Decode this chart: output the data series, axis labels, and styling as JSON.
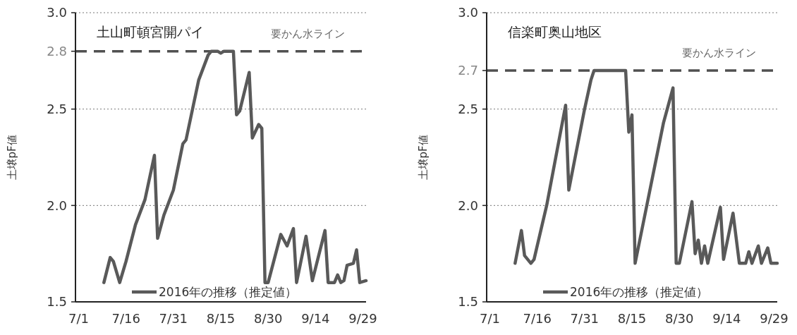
{
  "chart_data": [
    {
      "type": "line",
      "title": "土山町頓宮開パイ",
      "ylabel": "土壌pF値",
      "xlim": [
        "--06-30",
        "--09-30"
      ],
      "xticks": [
        {
          "value": "--07-01",
          "label": "7/1"
        },
        {
          "value": "--07-16",
          "label": "7/16"
        },
        {
          "value": "--07-31",
          "label": "7/31"
        },
        {
          "value": "--08-15",
          "label": "8/15"
        },
        {
          "value": "--08-30",
          "label": "8/30"
        },
        {
          "value": "--09-14",
          "label": "9/14"
        },
        {
          "value": "--09-29",
          "label": "9/29"
        }
      ],
      "ylim": [
        1.5,
        3.0
      ],
      "yticks": [
        {
          "value": 1.5,
          "label": "1.5"
        },
        {
          "value": 2.0,
          "label": "2.0"
        },
        {
          "value": 2.5,
          "label": "2.5"
        },
        {
          "value": 2.8,
          "label": "2.8"
        },
        {
          "value": 3.0,
          "label": "3.0"
        }
      ],
      "grid": "y",
      "legend": "bottom",
      "line_style": "solid",
      "ref_lines": [
        {
          "axis": "y",
          "value": 2.8,
          "label": "要かん水ライン",
          "color": "#505050",
          "line_style": "dashed"
        }
      ],
      "series": [
        {
          "name": "2016年の推移（推定値）",
          "color": "#595959",
          "x": [
            "--07-09",
            "--07-11",
            "--07-12",
            "--07-14",
            "--07-16",
            "--07-19",
            "--07-22",
            "--07-25",
            "--07-26",
            "--07-28",
            "--07-31",
            "--08-03",
            "--08-04",
            "--08-08",
            "--08-11",
            "--08-12",
            "--08-14",
            "--08-15",
            "--08-16",
            "--08-19",
            "--08-20",
            "--08-21",
            "--08-24",
            "--08-25",
            "--08-27",
            "--08-28",
            "--08-29",
            "--08-30",
            "--09-03",
            "--09-04",
            "--09-05",
            "--09-07",
            "--09-08",
            "--09-11",
            "--09-13",
            "--09-17",
            "--09-18",
            "--09-20",
            "--09-21",
            "--09-22",
            "--09-23",
            "--09-24",
            "--09-26",
            "--09-27",
            "--09-28",
            "--09-30"
          ],
          "values": [
            1.6,
            1.73,
            1.71,
            1.6,
            1.71,
            1.9,
            2.03,
            2.26,
            1.83,
            1.95,
            2.08,
            2.32,
            2.34,
            2.65,
            2.78,
            2.8,
            2.8,
            2.79,
            2.8,
            2.8,
            2.47,
            2.49,
            2.69,
            2.35,
            2.42,
            2.4,
            1.6,
            1.6,
            1.85,
            1.82,
            1.79,
            1.88,
            1.6,
            1.84,
            1.61,
            1.87,
            1.6,
            1.6,
            1.64,
            1.6,
            1.61,
            1.69,
            1.7,
            1.77,
            1.6,
            1.61
          ]
        }
      ]
    },
    {
      "type": "line",
      "title": "信楽町奥山地区",
      "ylabel": "土壌pF値",
      "xlim": [
        "--06-30",
        "--09-30"
      ],
      "xticks": [
        {
          "value": "--07-01",
          "label": "7/1"
        },
        {
          "value": "--07-16",
          "label": "7/16"
        },
        {
          "value": "--07-31",
          "label": "7/31"
        },
        {
          "value": "--08-15",
          "label": "8/15"
        },
        {
          "value": "--08-30",
          "label": "8/30"
        },
        {
          "value": "--09-14",
          "label": "9/14"
        },
        {
          "value": "--09-29",
          "label": "9/29"
        }
      ],
      "ylim": [
        1.5,
        3.0
      ],
      "yticks": [
        {
          "value": 1.5,
          "label": "1.5"
        },
        {
          "value": 2.0,
          "label": "2.0"
        },
        {
          "value": 2.5,
          "label": "2.5"
        },
        {
          "value": 2.7,
          "label": "2.7"
        },
        {
          "value": 3.0,
          "label": "3.0"
        }
      ],
      "grid": "y",
      "legend": "bottom",
      "line_style": "solid",
      "ref_lines": [
        {
          "axis": "y",
          "value": 2.7,
          "label": "要かん水ライン",
          "color": "#505050",
          "line_style": "dashed"
        }
      ],
      "series": [
        {
          "name": "2016年の推移（推定値）",
          "color": "#595959",
          "x": [
            "--07-09",
            "--07-11",
            "--07-12",
            "--07-14",
            "--07-15",
            "--07-19",
            "--07-25",
            "--07-26",
            "--07-31",
            "--08-02",
            "--08-03",
            "--08-06",
            "--08-10",
            "--08-13",
            "--08-14",
            "--08-15",
            "--08-16",
            "--08-25",
            "--08-28",
            "--08-29",
            "--08-30",
            "--09-03",
            "--09-04",
            "--09-05",
            "--09-06",
            "--09-07",
            "--09-08",
            "--09-12",
            "--09-13",
            "--09-16",
            "--09-18",
            "--09-20",
            "--09-21",
            "--09-22",
            "--09-24",
            "--09-25",
            "--09-27",
            "--09-28",
            "--09-30"
          ],
          "values": [
            1.7,
            1.87,
            1.74,
            1.7,
            1.72,
            2.0,
            2.52,
            2.08,
            2.5,
            2.65,
            2.7,
            2.7,
            2.7,
            2.7,
            2.38,
            2.47,
            1.7,
            2.43,
            2.61,
            1.7,
            1.7,
            2.02,
            1.75,
            1.82,
            1.7,
            1.79,
            1.7,
            1.99,
            1.72,
            1.96,
            1.7,
            1.7,
            1.76,
            1.7,
            1.79,
            1.7,
            1.78,
            1.7,
            1.7
          ]
        }
      ]
    }
  ]
}
